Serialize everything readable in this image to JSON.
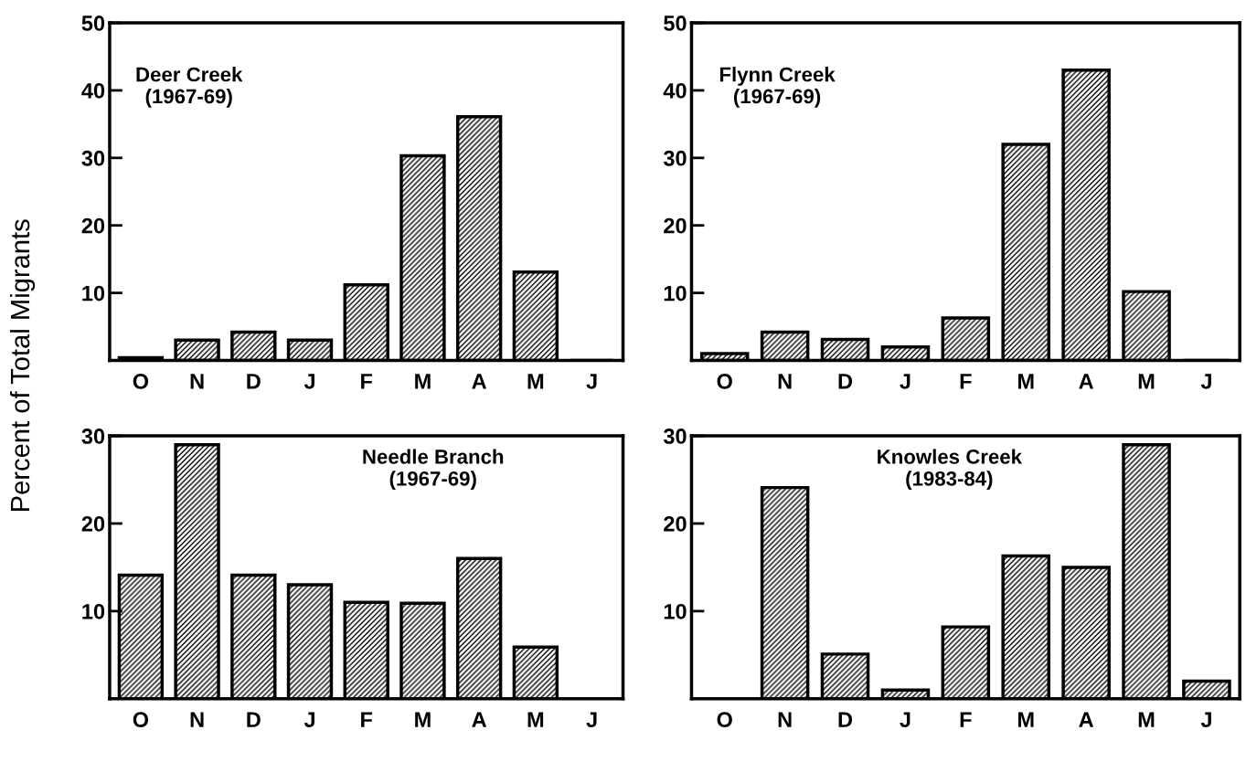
{
  "chart_data": [
    {
      "type": "bar",
      "title": "Deer Creek\n(1967-69)",
      "ylabel": "Percent of Total Migrants",
      "categories": [
        "O",
        "N",
        "D",
        "J",
        "F",
        "M",
        "A",
        "M",
        "J"
      ],
      "values": [
        0.4,
        3.0,
        4.2,
        3.0,
        11.2,
        30.3,
        36.1,
        13.1,
        0
      ],
      "color": "#000000",
      "ylim": [
        0,
        50
      ],
      "yticks": [
        10,
        20,
        30,
        40,
        50
      ],
      "grid": false
    },
    {
      "type": "bar",
      "title": "Flynn Creek\n(1967-69)",
      "categories": [
        "O",
        "N",
        "D",
        "J",
        "F",
        "M",
        "A",
        "M",
        "J"
      ],
      "values": [
        1.0,
        4.2,
        3.1,
        2.0,
        6.3,
        32,
        43,
        10.2,
        0
      ],
      "color": "#000000",
      "ylim": [
        0,
        50
      ],
      "yticks": [
        10,
        20,
        30,
        40,
        50
      ],
      "grid": false
    },
    {
      "type": "bar",
      "title": "Needle Branch\n(1967-69)",
      "categories": [
        "O",
        "N",
        "D",
        "J",
        "F",
        "M",
        "A",
        "M",
        "J"
      ],
      "values": [
        14.1,
        29,
        14.1,
        13,
        11,
        10.9,
        16,
        5.9,
        0
      ],
      "color": "#000000",
      "ylim": [
        0,
        30
      ],
      "yticks": [
        10,
        20,
        30
      ],
      "grid": false
    },
    {
      "type": "bar",
      "title": "Knowles Creek\n(1983-84)",
      "categories": [
        "O",
        "N",
        "D",
        "J",
        "F",
        "M",
        "A",
        "M",
        "J"
      ],
      "values": [
        0,
        24.1,
        5.1,
        1.0,
        8.2,
        16.3,
        15.0,
        29.0,
        2.0
      ],
      "color": "#000000",
      "ylim": [
        0,
        30
      ],
      "yticks": [
        10,
        20,
        30
      ],
      "grid": false
    }
  ]
}
